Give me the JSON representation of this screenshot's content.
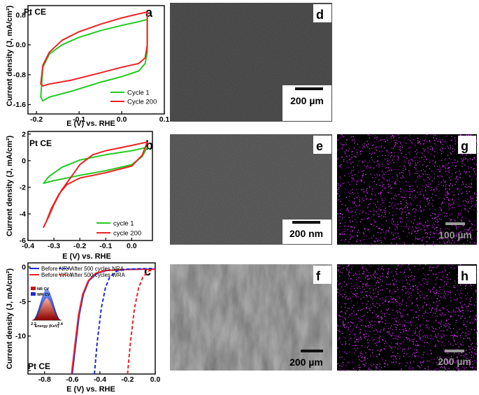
{
  "chart_data": [
    {
      "panel": "a",
      "type": "line",
      "title": "Pt CE",
      "xlabel": "E (V) vs. RHE",
      "ylabel": "Current density (J, mA/cm²)",
      "xlim": [
        -0.22,
        0.1
      ],
      "ylim": [
        -1.85,
        1.05
      ],
      "xticks": [
        -0.2,
        -0.1,
        0.0,
        0.1
      ],
      "xtick_labels": [
        "-0.2",
        "-0.1",
        "0.0",
        "0.1"
      ],
      "yticks": [
        -1.6,
        -0.8,
        0.0,
        0.8
      ],
      "ytick_labels": [
        "-1.6",
        "-0.8",
        "0.0",
        "0.8"
      ],
      "legend_position": "bottom-right",
      "series": [
        {
          "name": "Cycle 1",
          "color": "#22cc22",
          "points": [
            [
              0.06,
              0.68
            ],
            [
              0.04,
              0.62
            ],
            [
              0.0,
              0.52
            ],
            [
              -0.05,
              0.38
            ],
            [
              -0.1,
              0.2
            ],
            [
              -0.14,
              0.0
            ],
            [
              -0.17,
              -0.25
            ],
            [
              -0.185,
              -0.6
            ],
            [
              -0.19,
              -1.4
            ],
            [
              -0.185,
              -1.5
            ],
            [
              -0.17,
              -1.4
            ],
            [
              -0.12,
              -1.25
            ],
            [
              -0.05,
              -1.0
            ],
            [
              0.0,
              -0.85
            ],
            [
              0.04,
              -0.7
            ],
            [
              0.055,
              -0.5
            ],
            [
              0.06,
              -0.2
            ],
            [
              0.06,
              0.68
            ]
          ]
        },
        {
          "name": "Cycle 200",
          "color": "#ee2222",
          "points": [
            [
              0.06,
              0.88
            ],
            [
              0.04,
              0.83
            ],
            [
              0.0,
              0.72
            ],
            [
              -0.05,
              0.55
            ],
            [
              -0.1,
              0.35
            ],
            [
              -0.14,
              0.12
            ],
            [
              -0.17,
              -0.2
            ],
            [
              -0.185,
              -0.55
            ],
            [
              -0.19,
              -1.05
            ],
            [
              -0.185,
              -1.1
            ],
            [
              -0.17,
              -1.05
            ],
            [
              -0.12,
              -0.95
            ],
            [
              -0.05,
              -0.75
            ],
            [
              0.0,
              -0.6
            ],
            [
              0.04,
              -0.5
            ],
            [
              0.055,
              -0.35
            ],
            [
              0.06,
              0.0
            ],
            [
              0.06,
              0.88
            ]
          ]
        }
      ]
    },
    {
      "panel": "b",
      "type": "line",
      "title": "Pt CE",
      "xlabel": "E (V) vs. RHE",
      "ylabel": "Current density (J, mA/cm²)",
      "xlim": [
        -0.4,
        0.08
      ],
      "ylim": [
        -6,
        2.2
      ],
      "xticks": [
        -0.4,
        -0.3,
        -0.2,
        -0.1,
        0.0
      ],
      "xtick_labels": [
        "-0.4",
        "-0.3",
        "-0.2",
        "-0.1",
        "0.0"
      ],
      "yticks": [
        -6,
        -4,
        -2,
        0,
        2
      ],
      "ytick_labels": [
        "-6",
        "-4",
        "-2",
        "0",
        "2"
      ],
      "legend_position": "bottom-right",
      "series": [
        {
          "name": "cycle 1",
          "color": "#22cc22",
          "points": [
            [
              0.06,
              1.0
            ],
            [
              0.0,
              0.75
            ],
            [
              -0.1,
              0.45
            ],
            [
              -0.2,
              0.05
            ],
            [
              -0.27,
              -0.5
            ],
            [
              -0.32,
              -1.2
            ],
            [
              -0.34,
              -1.7
            ],
            [
              -0.3,
              -1.5
            ],
            [
              -0.2,
              -1.1
            ],
            [
              -0.1,
              -0.75
            ],
            [
              0.0,
              -0.3
            ],
            [
              0.04,
              0.3
            ],
            [
              0.06,
              1.0
            ]
          ]
        },
        {
          "name": "cycle 200",
          "color": "#ee2222",
          "points": [
            [
              0.06,
              1.4
            ],
            [
              0.0,
              1.15
            ],
            [
              -0.1,
              0.75
            ],
            [
              -0.15,
              0.45
            ],
            [
              -0.2,
              -0.3
            ],
            [
              -0.24,
              -1.4
            ],
            [
              -0.27,
              -2.2
            ],
            [
              -0.3,
              -3.3
            ],
            [
              -0.32,
              -4.2
            ],
            [
              -0.34,
              -5.0
            ],
            [
              -0.33,
              -4.6
            ],
            [
              -0.31,
              -3.6
            ],
            [
              -0.28,
              -2.5
            ],
            [
              -0.25,
              -1.8
            ],
            [
              -0.2,
              -1.3
            ],
            [
              -0.1,
              -0.9
            ],
            [
              0.0,
              -0.4
            ],
            [
              0.04,
              0.4
            ],
            [
              0.06,
              1.4
            ]
          ]
        }
      ]
    },
    {
      "panel": "c",
      "type": "line",
      "title": "Pt CE",
      "xlabel": "E (V) vs. RHE",
      "ylabel": "Current density (J, mA/cm²)",
      "xlim": [
        -0.92,
        0.0
      ],
      "ylim": [
        -15.5,
        0.6
      ],
      "xticks": [
        -0.8,
        -0.6,
        -0.4,
        -0.2,
        0.0
      ],
      "xtick_labels": [
        "-0.8",
        "-0.6",
        "-0.4",
        "-0.2",
        "0.0"
      ],
      "yticks": [
        -15,
        -10,
        -5,
        0
      ],
      "ytick_labels": [
        "",
        "-10",
        "-5",
        "0"
      ],
      "legend_position": "top",
      "series": [
        {
          "name": "Before NRA",
          "color": "#1a2adb",
          "dash": false,
          "points": [
            [
              -0.6,
              -15.5
            ],
            [
              -0.58,
              -12
            ],
            [
              -0.55,
              -7
            ],
            [
              -0.52,
              -4
            ],
            [
              -0.48,
              -2
            ],
            [
              -0.42,
              -0.9
            ],
            [
              -0.35,
              -0.5
            ],
            [
              -0.2,
              -0.35
            ],
            [
              0.0,
              -0.3
            ]
          ]
        },
        {
          "name": "Before WRA",
          "color": "#ee2222",
          "dash": false,
          "points": [
            [
              -0.605,
              -15.5
            ],
            [
              -0.585,
              -12
            ],
            [
              -0.555,
              -7
            ],
            [
              -0.525,
              -4
            ],
            [
              -0.485,
              -2
            ],
            [
              -0.43,
              -0.9
            ],
            [
              -0.36,
              -0.5
            ],
            [
              -0.2,
              -0.35
            ],
            [
              0.0,
              -0.3
            ]
          ]
        },
        {
          "name": "After 500 cycles NRA",
          "color": "#1a2adb",
          "dash": true,
          "points": [
            [
              -0.44,
              -15.5
            ],
            [
              -0.42,
              -11
            ],
            [
              -0.39,
              -6
            ],
            [
              -0.36,
              -3
            ],
            [
              -0.33,
              -1.5
            ],
            [
              -0.28,
              -0.6
            ],
            [
              -0.2,
              -0.3
            ],
            [
              0.0,
              -0.2
            ]
          ]
        },
        {
          "name": "After 500 cycles WRA",
          "color": "#ee2222",
          "dash": true,
          "points": [
            [
              -0.2,
              -15.5
            ],
            [
              -0.18,
              -11
            ],
            [
              -0.15,
              -6
            ],
            [
              -0.12,
              -3
            ],
            [
              -0.09,
              -1.5
            ],
            [
              -0.05,
              -0.6
            ],
            [
              0.0,
              -0.3
            ]
          ]
        }
      ],
      "inset": {
        "xlabel": "Energy (KeV)",
        "xtick_labels": [
          "2.2",
          "2.4"
        ],
        "legend": [
          {
            "name": "NR CV",
            "color": "#cc1111"
          },
          {
            "name": "WR CV",
            "color": "#1a2adb"
          }
        ]
      }
    }
  ],
  "images": [
    {
      "panel": "d",
      "scale_bar": "200 µm",
      "bar_color": "#111111"
    },
    {
      "panel": "e",
      "scale_bar": "200 nm",
      "bar_color": "#111111"
    },
    {
      "panel": "f",
      "scale_bar": "200 µm",
      "bar_color": "#111111"
    },
    {
      "panel": "g",
      "scale_bar": "100 µm",
      "bar_color": "#9a9a9a"
    },
    {
      "panel": "h",
      "scale_bar": "200 µm",
      "bar_color": "#9a9a9a"
    }
  ]
}
